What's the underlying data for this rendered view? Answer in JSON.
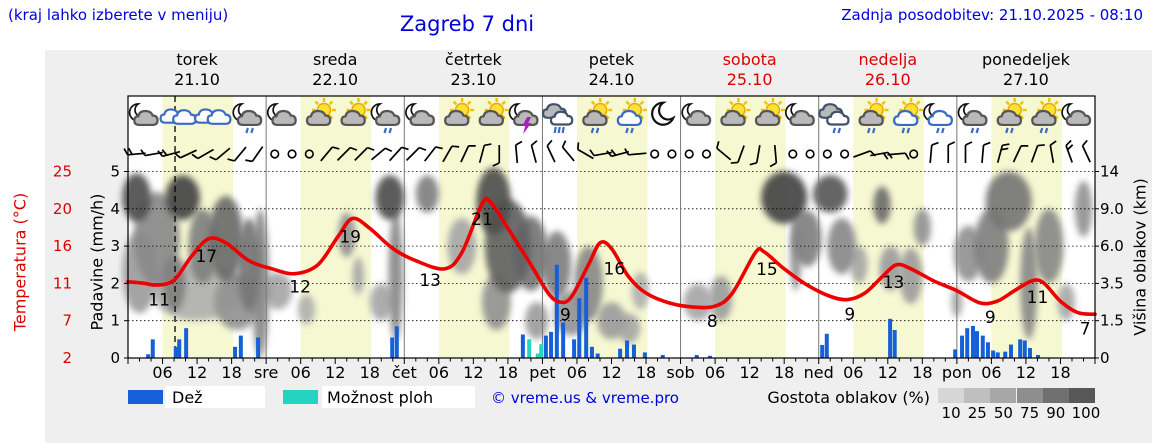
{
  "header": {
    "hint": "(kraj lahko izberete v meniju)",
    "title": "Zagreb 7 dni",
    "updated": "Zadnja posodobitev: 21.10.2025 - 08:10"
  },
  "days": [
    {
      "name": "torek",
      "date": "21.10",
      "red": false
    },
    {
      "name": "sreda",
      "date": "22.10",
      "red": false
    },
    {
      "name": "četrtek",
      "date": "23.10",
      "red": false
    },
    {
      "name": "petek",
      "date": "24.10",
      "red": false
    },
    {
      "name": "sobota",
      "date": "25.10",
      "red": true
    },
    {
      "name": "nedelja",
      "date": "26.10",
      "red": true
    },
    {
      "name": "ponedeljek",
      "date": "27.10",
      "red": false
    }
  ],
  "axes": {
    "temp": {
      "title": "Temperatura (°C)",
      "ticks": [
        "25",
        "20",
        "16",
        "11",
        "7",
        "2"
      ]
    },
    "precip": {
      "title": "Padavine (mm/h)",
      "ticks": [
        "5",
        "4",
        "3",
        "2",
        "1",
        "0"
      ]
    },
    "cloudheight": {
      "title": "Višina oblakov (km)",
      "ticks": [
        "14",
        "9.0",
        "6.0",
        "3.5",
        "1.5",
        "0"
      ]
    },
    "time": {
      "hour_labels": [
        "06",
        "12",
        "18"
      ],
      "day_abbrevs": [
        "sre",
        "čet",
        "pet",
        "sob",
        "ned",
        "pon"
      ]
    }
  },
  "legend": {
    "rain": "Dež",
    "shower": "Možnost ploh",
    "copyright": "© vreme.us & vreme.pro",
    "cloud": "Gostota oblakov (%)",
    "cloud_scale": [
      "10",
      "25",
      "50",
      "75",
      "90",
      "100"
    ],
    "cloud_colors": [
      "#d6d6d6",
      "#bfbfbf",
      "#a7a7a7",
      "#8e8e8e",
      "#707070",
      "#575757"
    ]
  },
  "colors": {
    "accent_blue": "#0000dd",
    "red": "#dd0000",
    "curve_red": "#ee0000",
    "rain_blue": "#1560d8",
    "shower_cyan": "#25d4c0",
    "day_band_yellow": "#f6f8d2",
    "separator_gray": "#777777"
  },
  "icons": [
    {
      "parts": [
        "moon",
        "cloud"
      ]
    },
    {
      "parts": [
        "clouds"
      ]
    },
    {
      "parts": [
        "clouds"
      ]
    },
    {
      "parts": [
        "moon",
        "cloud",
        "drizzle"
      ]
    },
    {
      "parts": [
        "moon",
        "cloud"
      ]
    },
    {
      "parts": [
        "sun",
        "cloud"
      ]
    },
    {
      "parts": [
        "sun",
        "cloud"
      ]
    },
    {
      "parts": [
        "moon",
        "cloud",
        "drizzle"
      ]
    },
    {
      "parts": [
        "moon",
        "cloud"
      ]
    },
    {
      "parts": [
        "sun",
        "cloud"
      ]
    },
    {
      "parts": [
        "sun",
        "cloud"
      ]
    },
    {
      "parts": [
        "moon",
        "cloud",
        "storm"
      ]
    },
    {
      "parts": [
        "cloud2",
        "rain"
      ]
    },
    {
      "parts": [
        "sun",
        "cloud",
        "drizzle"
      ]
    },
    {
      "parts": [
        "sun",
        "cloudw",
        "drizzle"
      ]
    },
    {
      "parts": [
        "moon"
      ]
    },
    {
      "parts": [
        "moon",
        "cloud"
      ]
    },
    {
      "parts": [
        "sun",
        "cloud"
      ]
    },
    {
      "parts": [
        "sun",
        "cloud"
      ]
    },
    {
      "parts": [
        "moon",
        "cloud"
      ]
    },
    {
      "parts": [
        "cloud2",
        "drizzle"
      ]
    },
    {
      "parts": [
        "sun",
        "cloud",
        "drizzle"
      ]
    },
    {
      "parts": [
        "sun",
        "cloudw",
        "drizzle"
      ]
    },
    {
      "parts": [
        "moon",
        "cloudw",
        "drizzle"
      ]
    },
    {
      "parts": [
        "moon",
        "cloud",
        "drizzle"
      ]
    },
    {
      "parts": [
        "sun",
        "cloud",
        "drizzle"
      ]
    },
    {
      "parts": [
        "sun",
        "cloud",
        "drizzle"
      ]
    },
    {
      "parts": [
        "moon",
        "cloud"
      ]
    }
  ],
  "wind": [
    {
      "a": 265,
      "k": 2
    },
    {
      "a": 260,
      "k": 1
    },
    {
      "a": 255,
      "k": 2
    },
    {
      "a": 245,
      "k": 1
    },
    {
      "a": 240,
      "k": 1
    },
    {
      "a": 230,
      "k": 1
    },
    {
      "a": 220,
      "k": 1
    },
    {
      "a": 215,
      "k": 1
    },
    {
      "a": null
    },
    {
      "a": null
    },
    {
      "a": null
    },
    {
      "a": 40,
      "k": 1
    },
    {
      "a": 45,
      "k": 1
    },
    {
      "a": 45,
      "k": 1
    },
    {
      "a": 50,
      "k": 1
    },
    {
      "a": 42,
      "k": 1
    },
    {
      "a": 45,
      "k": 1
    },
    {
      "a": 38,
      "k": 1
    },
    {
      "a": 30,
      "k": 1
    },
    {
      "a": 25,
      "k": 1
    },
    {
      "a": 15,
      "k": 1
    },
    {
      "a": 180,
      "k": 1
    },
    {
      "a": 355,
      "k": 1
    },
    {
      "a": 345,
      "k": 1
    },
    {
      "a": 335,
      "k": 1
    },
    {
      "a": 320,
      "k": 1
    },
    {
      "a": 300,
      "k": 1
    },
    {
      "a": 260,
      "k": 1
    },
    {
      "a": 255,
      "k": 2
    },
    {
      "a": 265,
      "k": 1
    },
    {
      "a": null
    },
    {
      "a": null
    },
    {
      "a": null
    },
    {
      "a": null
    },
    {
      "a": 310,
      "k": 1
    },
    {
      "a": 200,
      "k": 1
    },
    {
      "a": 190,
      "k": 1
    },
    {
      "a": 175,
      "k": 1
    },
    {
      "a": null
    },
    {
      "a": null
    },
    {
      "a": null
    },
    {
      "a": null
    },
    {
      "a": 70,
      "k": 1
    },
    {
      "a": 80,
      "k": 2
    },
    {
      "a": 85,
      "k": 1
    },
    {
      "a": null
    },
    {
      "a": 5,
      "k": 1
    },
    {
      "a": 0,
      "k": 1
    },
    {
      "a": 0,
      "k": 1
    },
    {
      "a": 5,
      "k": 1
    },
    {
      "a": 15,
      "k": 2
    },
    {
      "a": 25,
      "k": 1
    },
    {
      "a": 20,
      "k": 1
    },
    {
      "a": 350,
      "k": 1
    },
    {
      "a": 340,
      "k": 2
    },
    {
      "a": 335,
      "k": 1
    }
  ],
  "chart_data": {
    "type": "meteogram (line temperature + bar precipitation + cloud shading)",
    "now_line_hour": 8.17,
    "day_band_hours": [
      6,
      18.25
    ],
    "y_levels": {
      "precip_mmh": [
        0,
        1,
        2,
        3,
        4,
        5
      ],
      "temp_c": [
        2,
        7,
        11,
        16,
        20,
        25
      ],
      "cloud_km": [
        0,
        1.5,
        3.5,
        6.0,
        9.0,
        14
      ]
    },
    "temperature": {
      "unit": "°C",
      "series": [
        [
          0,
          11.4
        ],
        [
          3,
          11.2
        ],
        [
          5,
          11.0
        ],
        [
          8,
          11.6
        ],
        [
          11,
          14.5
        ],
        [
          14,
          16.7
        ],
        [
          17,
          16.2
        ],
        [
          21,
          14.0
        ],
        [
          25,
          13.0
        ],
        [
          29,
          12.4
        ],
        [
          33,
          13.5
        ],
        [
          36.5,
          17.0
        ],
        [
          39,
          19.2
        ],
        [
          42,
          18.0
        ],
        [
          46,
          15.5
        ],
        [
          50,
          14.0
        ],
        [
          55,
          13.0
        ],
        [
          58,
          15.0
        ],
        [
          61.5,
          21.0
        ],
        [
          63,
          21.2
        ],
        [
          66,
          18.0
        ],
        [
          70,
          13.5
        ],
        [
          73,
          10.0
        ],
        [
          75,
          8.9
        ],
        [
          77,
          9.5
        ],
        [
          80,
          13.5
        ],
        [
          82,
          16.2
        ],
        [
          84,
          15.5
        ],
        [
          87,
          12.0
        ],
        [
          90,
          10.0
        ],
        [
          94,
          8.8
        ],
        [
          98,
          8.3
        ],
        [
          102,
          8.4
        ],
        [
          105,
          10.0
        ],
        [
          109,
          15.0
        ],
        [
          110.5,
          15.1
        ],
        [
          114,
          13.0
        ],
        [
          118,
          11.0
        ],
        [
          122,
          9.6
        ],
        [
          125,
          9.2
        ],
        [
          128,
          10.0
        ],
        [
          131,
          12.0
        ],
        [
          133.5,
          13.5
        ],
        [
          136,
          13.0
        ],
        [
          140,
          11.5
        ],
        [
          144,
          10.3
        ],
        [
          148,
          8.8
        ],
        [
          151,
          9.0
        ],
        [
          154,
          10.3
        ],
        [
          157,
          11.5
        ],
        [
          159,
          11.3
        ],
        [
          162,
          9.0
        ],
        [
          165,
          7.6
        ],
        [
          168,
          7.4
        ]
      ],
      "labels": [
        [
          5.4,
          "11"
        ],
        [
          13.6,
          "17"
        ],
        [
          29.9,
          "12"
        ],
        [
          38.6,
          "19"
        ],
        [
          52.5,
          "13"
        ],
        [
          61.5,
          "21"
        ],
        [
          76,
          "9"
        ],
        [
          84.5,
          "16"
        ],
        [
          101.5,
          "8"
        ],
        [
          111,
          "15"
        ],
        [
          125.4,
          "9"
        ],
        [
          133,
          "13"
        ],
        [
          149.8,
          "9"
        ],
        [
          158,
          "11"
        ],
        [
          166.3,
          "7"
        ]
      ]
    },
    "precipitation": {
      "unit": "mm/h",
      "bars": [
        [
          3.5,
          0.1,
          "r"
        ],
        [
          4.3,
          0.5,
          "r"
        ],
        [
          8.3,
          0.3,
          "r"
        ],
        [
          8.9,
          0.5,
          "r"
        ],
        [
          10.1,
          0.8,
          "r"
        ],
        [
          18.6,
          0.3,
          "r"
        ],
        [
          19.6,
          0.6,
          "r"
        ],
        [
          22.6,
          0.55,
          "r"
        ],
        [
          45.9,
          0.55,
          "r"
        ],
        [
          46.7,
          0.85,
          "r"
        ],
        [
          68.6,
          0.63,
          "r"
        ],
        [
          69.7,
          0.5,
          "s"
        ],
        [
          71.2,
          0.12,
          "s"
        ],
        [
          71.8,
          0.37,
          "s"
        ],
        [
          72.6,
          0.6,
          "r"
        ],
        [
          73.5,
          0.7,
          "r"
        ],
        [
          74.5,
          2.5,
          "r"
        ],
        [
          75.6,
          0.95,
          "r"
        ],
        [
          77.5,
          0.5,
          "r"
        ],
        [
          78.4,
          1.6,
          "r"
        ],
        [
          79.6,
          2.15,
          "r"
        ],
        [
          80.6,
          0.3,
          "r"
        ],
        [
          81.6,
          0.12,
          "r"
        ],
        [
          85.5,
          0.25,
          "r"
        ],
        [
          86.7,
          0.47,
          "r"
        ],
        [
          87.9,
          0.36,
          "r"
        ],
        [
          89.8,
          0.15,
          "r"
        ],
        [
          92.9,
          0.08,
          "r"
        ],
        [
          98.8,
          0.08,
          "r"
        ],
        [
          101.1,
          0.06,
          "r"
        ],
        [
          120.6,
          0.35,
          "r"
        ],
        [
          121.4,
          0.65,
          "r"
        ],
        [
          132.4,
          1.05,
          "r"
        ],
        [
          133.2,
          0.75,
          "r"
        ],
        [
          143.7,
          0.23,
          "r"
        ],
        [
          144.9,
          0.6,
          "r"
        ],
        [
          145.8,
          0.8,
          "r"
        ],
        [
          146.8,
          0.86,
          "r"
        ],
        [
          147.5,
          0.72,
          "r"
        ],
        [
          148.5,
          0.6,
          "r"
        ],
        [
          149.4,
          0.42,
          "r"
        ],
        [
          150.3,
          0.2,
          "r"
        ],
        [
          151.1,
          0.15,
          "r"
        ],
        [
          152.4,
          0.17,
          "r"
        ],
        [
          153.4,
          0.36,
          "r"
        ],
        [
          155,
          0.5,
          "r"
        ],
        [
          155.8,
          0.47,
          "r"
        ],
        [
          156.7,
          0.27,
          "r"
        ],
        [
          158.1,
          0.08,
          "r"
        ]
      ]
    },
    "cloud_blobs": [
      [
        1.5,
        4.3,
        5,
        1.3,
        0.75
      ],
      [
        2,
        2.3,
        6,
        2.2,
        0.35
      ],
      [
        5,
        3.2,
        8,
        2.5,
        0.45
      ],
      [
        9.5,
        4.3,
        6,
        1.2,
        0.8
      ],
      [
        8,
        2,
        4,
        1.5,
        0.5
      ],
      [
        12,
        1.8,
        16,
        1.6,
        0.25
      ],
      [
        13,
        3,
        5,
        2,
        0.5
      ],
      [
        17,
        3.2,
        6,
        2.3,
        0.6
      ],
      [
        19,
        1.5,
        8,
        1.5,
        0.4
      ],
      [
        21,
        2.5,
        4,
        2.5,
        0.55
      ],
      [
        23,
        2,
        3,
        4,
        0.45
      ],
      [
        26,
        1.8,
        5,
        1,
        0.3
      ],
      [
        31,
        1.3,
        3,
        0.8,
        0.25
      ],
      [
        38,
        3.3,
        3,
        1.2,
        0.4
      ],
      [
        40,
        2.2,
        2,
        1,
        0.3
      ],
      [
        44,
        1.5,
        4,
        1,
        0.3
      ],
      [
        45.5,
        4.3,
        5,
        1.2,
        0.75
      ],
      [
        46.5,
        2.2,
        2.5,
        3.5,
        0.45
      ],
      [
        52,
        4.4,
        4,
        1,
        0.5
      ],
      [
        58,
        3,
        5,
        1.5,
        0.3
      ],
      [
        63.5,
        4.2,
        6,
        1.8,
        0.75
      ],
      [
        66,
        3,
        8,
        2.5,
        0.65
      ],
      [
        64,
        1.5,
        5,
        1.5,
        0.4
      ],
      [
        70,
        2.8,
        6,
        2,
        0.55
      ],
      [
        71,
        1,
        4,
        1,
        0.35
      ],
      [
        74.5,
        2.5,
        5,
        1.8,
        0.5
      ],
      [
        77,
        1.2,
        6,
        1.2,
        0.4
      ],
      [
        80,
        2,
        5,
        2,
        0.45
      ],
      [
        84,
        1,
        5,
        1,
        0.35
      ],
      [
        87,
        0.8,
        4,
        0.8,
        0.3
      ],
      [
        89,
        1.8,
        3,
        1,
        0.25
      ],
      [
        99,
        1.5,
        5,
        1,
        0.3
      ],
      [
        103,
        1.6,
        4,
        1.2,
        0.35
      ],
      [
        114,
        4.3,
        8,
        1.4,
        0.8
      ],
      [
        116,
        2.8,
        2,
        2,
        0.4
      ],
      [
        118,
        3.2,
        5,
        1.5,
        0.5
      ],
      [
        122,
        4.4,
        6,
        1,
        0.7
      ],
      [
        124,
        3,
        5,
        1.5,
        0.45
      ],
      [
        127,
        2.5,
        3,
        1,
        0.3
      ],
      [
        131,
        4.1,
        3,
        1,
        0.6
      ],
      [
        132.5,
        2.4,
        4,
        1.2,
        0.35
      ],
      [
        136,
        2.2,
        4,
        1.5,
        0.35
      ],
      [
        138,
        3.5,
        3,
        1,
        0.4
      ],
      [
        144,
        1.5,
        2,
        0.8,
        0.3
      ],
      [
        146,
        2.8,
        5,
        1.5,
        0.4
      ],
      [
        150,
        3,
        6,
        2,
        0.5
      ],
      [
        153,
        4.2,
        8,
        1.6,
        0.55
      ],
      [
        156.5,
        2,
        3,
        3,
        0.45
      ],
      [
        160,
        3,
        5,
        2,
        0.45
      ],
      [
        163,
        1.5,
        3,
        1,
        0.3
      ],
      [
        166,
        4,
        3,
        1.5,
        0.4
      ]
    ]
  }
}
